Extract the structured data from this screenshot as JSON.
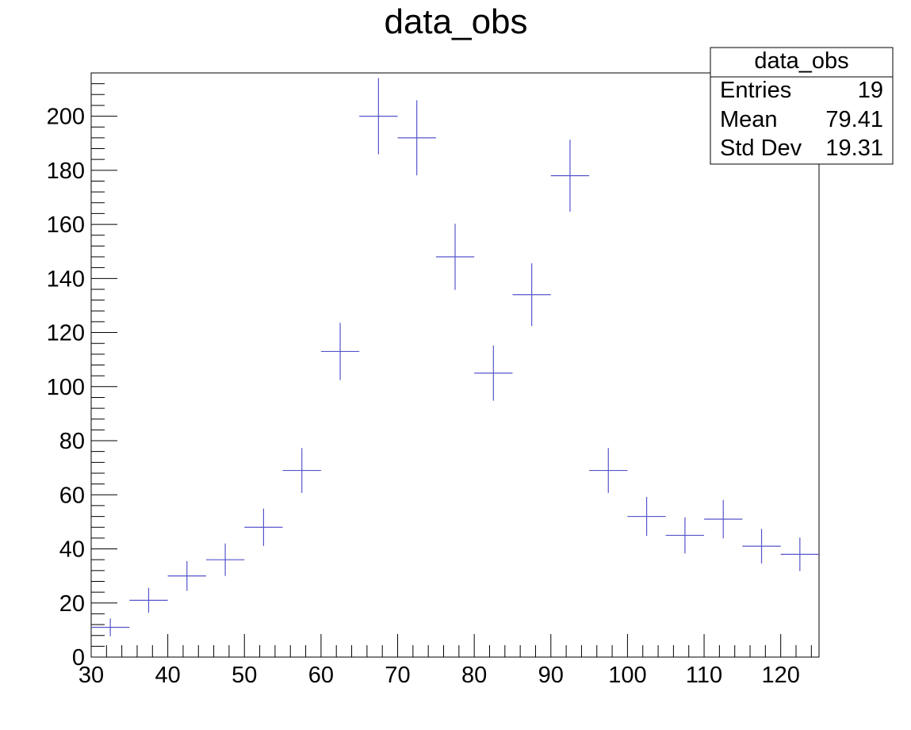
{
  "chart_data": {
    "type": "scatter",
    "title": "data_obs",
    "xlabel": "",
    "ylabel": "",
    "xlim": [
      30,
      125
    ],
    "ylim": [
      0,
      216
    ],
    "x_ticks": [
      30,
      40,
      50,
      60,
      70,
      80,
      90,
      100,
      110,
      120
    ],
    "y_ticks": [
      0,
      20,
      40,
      60,
      80,
      100,
      120,
      140,
      160,
      180,
      200
    ],
    "bin_width": 5,
    "grid": false,
    "marker_color": "#5555cc",
    "series": [
      {
        "x": [
          32.5,
          37.5,
          42.5,
          47.5,
          52.5,
          57.5,
          62.5,
          67.5,
          72.5,
          77.5,
          82.5,
          87.5,
          92.5,
          97.5,
          102.5,
          107.5,
          112.5,
          117.5,
          122.5
        ],
        "values": [
          11,
          21,
          30,
          36,
          48,
          69,
          113,
          200,
          192,
          148,
          105,
          134,
          178,
          69,
          52,
          45,
          51,
          41,
          38
        ],
        "errors": [
          3.3,
          4.6,
          5.5,
          6.0,
          6.9,
          8.3,
          10.6,
          14.1,
          13.9,
          12.2,
          10.2,
          11.6,
          13.3,
          8.3,
          7.2,
          6.7,
          7.1,
          6.4,
          6.2
        ]
      }
    ],
    "stats_box": {
      "title": "data_obs",
      "rows": [
        {
          "label": "Entries",
          "value": "19"
        },
        {
          "label": "Mean",
          "value": "79.41"
        },
        {
          "label": "Std Dev",
          "value": "19.31"
        }
      ]
    }
  }
}
